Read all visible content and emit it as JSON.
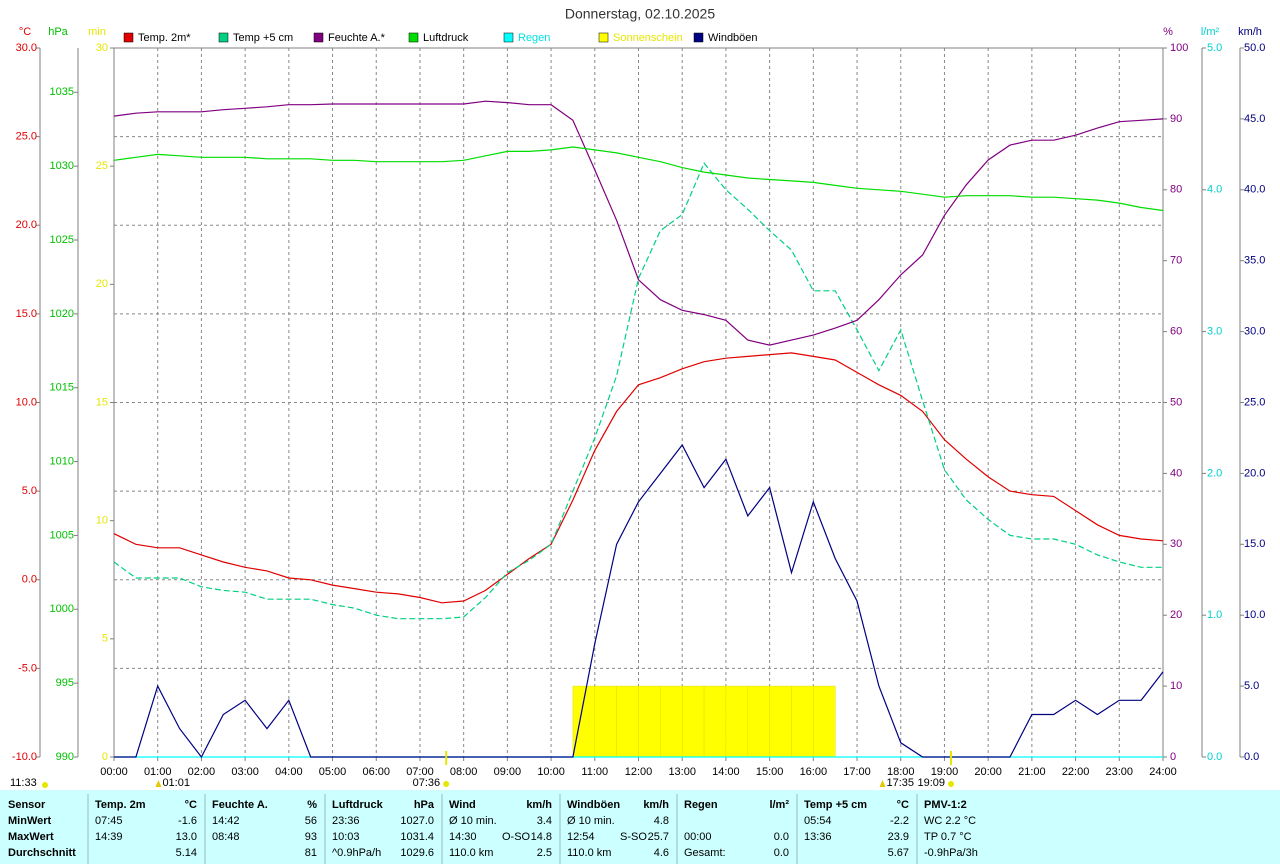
{
  "chart_data": {
    "type": "line",
    "title": "Donnerstag, 02.10.2025",
    "legend": "top",
    "grid": true,
    "grid_axis": 0,
    "xlim": [
      0,
      24
    ],
    "xticks": [
      {
        "value": 0,
        "label": "00:00"
      },
      {
        "value": 1,
        "label": "01:00"
      },
      {
        "value": 2,
        "label": "02:00"
      },
      {
        "value": 3,
        "label": "03:00"
      },
      {
        "value": 4,
        "label": "04:00"
      },
      {
        "value": 5,
        "label": "05:00"
      },
      {
        "value": 6,
        "label": "06:00"
      },
      {
        "value": 7,
        "label": "07:00"
      },
      {
        "value": 8,
        "label": "08:00"
      },
      {
        "value": 9,
        "label": "09:00"
      },
      {
        "value": 10,
        "label": "10:00"
      },
      {
        "value": 11,
        "label": "11:00"
      },
      {
        "value": 12,
        "label": "12:00"
      },
      {
        "value": 13,
        "label": "13:00"
      },
      {
        "value": 14,
        "label": "14:00"
      },
      {
        "value": 15,
        "label": "15:00"
      },
      {
        "value": 16,
        "label": "16:00"
      },
      {
        "value": 17,
        "label": "17:00"
      },
      {
        "value": 18,
        "label": "18:00"
      },
      {
        "value": 19,
        "label": "19:00"
      },
      {
        "value": 20,
        "label": "20:00"
      },
      {
        "value": 21,
        "label": "21:00"
      },
      {
        "value": 22,
        "label": "22:00"
      },
      {
        "value": 23,
        "label": "23:00"
      },
      {
        "value": 24,
        "label": "24:00"
      }
    ],
    "axes": [
      {
        "label": "°C",
        "color": "#e00000",
        "lim": [
          -10,
          30
        ],
        "ticks": [
          {
            "value": -10,
            "label": "-10.0"
          },
          {
            "value": -5,
            "label": "-5.0"
          },
          {
            "value": 0,
            "label": "0.0"
          },
          {
            "value": 5,
            "label": "5.0"
          },
          {
            "value": 10,
            "label": "10.0"
          },
          {
            "value": 15,
            "label": "15.0"
          },
          {
            "value": 20,
            "label": "20.0"
          },
          {
            "value": 25,
            "label": "25.0"
          },
          {
            "value": 30,
            "label": "30.0"
          }
        ]
      },
      {
        "label": "hPa",
        "color": "#00c000",
        "lim": [
          990,
          1038
        ],
        "ticks": [
          990,
          995,
          1000,
          1005,
          1010,
          1015,
          1020,
          1025,
          1030,
          1035
        ]
      },
      {
        "label": "min",
        "color": "#e6e600",
        "lim": [
          0,
          30
        ],
        "ticks": [
          0,
          5,
          10,
          15,
          20,
          25,
          30
        ]
      },
      {
        "label": "%",
        "color": "#800080",
        "lim": [
          0,
          100
        ],
        "ticks": [
          0,
          10,
          20,
          30,
          40,
          50,
          60,
          70,
          80,
          90,
          100
        ]
      },
      {
        "label": "l/m²",
        "color": "#00d0d0",
        "lim": [
          0,
          5
        ],
        "ticks": [
          {
            "value": 0,
            "label": "0.0"
          },
          {
            "value": 1,
            "label": "1.0"
          },
          {
            "value": 2,
            "label": "2.0"
          },
          {
            "value": 3,
            "label": "3.0"
          },
          {
            "value": 4,
            "label": "4.0"
          },
          {
            "value": 5,
            "label": "5.0"
          }
        ]
      },
      {
        "label": "km/h",
        "color": "#000080",
        "lim": [
          0,
          50
        ],
        "ticks": [
          {
            "value": 0,
            "label": "0.0"
          },
          {
            "value": 5,
            "label": "5.0"
          },
          {
            "value": 10,
            "label": "10.0"
          },
          {
            "value": 15,
            "label": "15.0"
          },
          {
            "value": 20,
            "label": "20.0"
          },
          {
            "value": 25,
            "label": "25.0"
          },
          {
            "value": 30,
            "label": "30.0"
          },
          {
            "value": 35,
            "label": "35.0"
          },
          {
            "value": 40,
            "label": "40.0"
          },
          {
            "value": 45,
            "label": "45.0"
          },
          {
            "value": 50,
            "label": "50.0"
          }
        ]
      }
    ],
    "x": [
      0,
      0.5,
      1,
      1.5,
      2,
      2.5,
      3,
      3.5,
      4,
      4.5,
      5,
      5.5,
      6,
      6.5,
      7,
      7.5,
      8,
      8.5,
      9,
      9.5,
      10,
      10.5,
      11,
      11.5,
      12,
      12.5,
      13,
      13.5,
      14,
      14.5,
      15,
      15.5,
      16,
      16.5,
      17,
      17.5,
      18,
      18.5,
      19,
      19.5,
      20,
      20.5,
      21,
      21.5,
      22,
      22.5,
      23,
      23.5,
      24
    ],
    "series": [
      {
        "name": "Temp. 2m*",
        "color": "#e00000",
        "axis": 0,
        "style": "solid",
        "values": [
          2.6,
          2.0,
          1.8,
          1.8,
          1.4,
          1.0,
          0.7,
          0.5,
          0.1,
          0.0,
          -0.3,
          -0.5,
          -0.7,
          -0.8,
          -1.0,
          -1.3,
          -1.2,
          -0.6,
          0.3,
          1.2,
          2.0,
          4.5,
          7.3,
          9.5,
          11.0,
          11.4,
          11.9,
          12.3,
          12.5,
          12.6,
          12.7,
          12.8,
          12.6,
          12.4,
          11.7,
          11.0,
          10.4,
          9.5,
          7.9,
          6.8,
          5.8,
          5.0,
          4.8,
          4.7,
          3.9,
          3.1,
          2.5,
          2.3,
          2.2
        ]
      },
      {
        "name": "Temp +5 cm",
        "color": "#00d080",
        "axis": 0,
        "style": "dashed",
        "values": [
          1.0,
          0.1,
          0.1,
          0.1,
          -0.4,
          -0.6,
          -0.7,
          -1.1,
          -1.1,
          -1.1,
          -1.4,
          -1.6,
          -2.0,
          -2.2,
          -2.2,
          -2.2,
          -2.1,
          -1.0,
          0.4,
          1.1,
          2.0,
          5.0,
          8.0,
          11.5,
          17.0,
          19.7,
          20.6,
          23.5,
          22.0,
          20.9,
          19.7,
          18.6,
          16.3,
          16.3,
          14.1,
          11.8,
          14.1,
          10.1,
          6.2,
          4.5,
          3.4,
          2.5,
          2.3,
          2.3,
          2.0,
          1.4,
          1.0,
          0.7,
          0.7
        ]
      },
      {
        "name": "Feuchte A.*",
        "color": "#800080",
        "axis": 3,
        "style": "solid",
        "values": [
          90.4,
          90.8,
          91.0,
          91.0,
          91.0,
          91.3,
          91.5,
          91.7,
          92.0,
          92.0,
          92.1,
          92.1,
          92.1,
          92.1,
          92.1,
          92.1,
          92.1,
          92.5,
          92.3,
          92.0,
          92.0,
          89.8,
          82.8,
          75.7,
          67.3,
          64.5,
          63.0,
          62.4,
          61.6,
          58.8,
          58.1,
          58.8,
          59.5,
          60.5,
          61.6,
          64.5,
          68.0,
          70.8,
          76.4,
          80.7,
          84.2,
          86.3,
          87.0,
          87.0,
          87.7,
          88.7,
          89.6,
          89.8,
          90.0
        ]
      },
      {
        "name": "Luftdruck",
        "color": "#00dd00",
        "axis": 1,
        "style": "solid",
        "values": [
          1030.4,
          1030.6,
          1030.8,
          1030.7,
          1030.6,
          1030.6,
          1030.6,
          1030.5,
          1030.5,
          1030.5,
          1030.4,
          1030.4,
          1030.3,
          1030.3,
          1030.3,
          1030.3,
          1030.4,
          1030.7,
          1031.0,
          1031.0,
          1031.1,
          1031.3,
          1031.1,
          1030.9,
          1030.6,
          1030.3,
          1029.9,
          1029.6,
          1029.4,
          1029.2,
          1029.1,
          1029.0,
          1028.9,
          1028.7,
          1028.5,
          1028.4,
          1028.3,
          1028.1,
          1027.9,
          1028.0,
          1028.0,
          1028.0,
          1027.9,
          1027.9,
          1027.8,
          1027.7,
          1027.5,
          1027.2,
          1027.0
        ]
      },
      {
        "name": "Regen",
        "color": "#00ffff",
        "legend_text_color": "#00e0e0",
        "axis": 4,
        "style": "solid",
        "values": [
          0,
          0,
          0,
          0,
          0,
          0,
          0,
          0,
          0,
          0,
          0,
          0,
          0,
          0,
          0,
          0,
          0,
          0,
          0,
          0,
          0,
          0,
          0,
          0,
          0,
          0,
          0,
          0,
          0,
          0,
          0,
          0,
          0,
          0,
          0,
          0,
          0,
          0,
          0,
          0,
          0,
          0,
          0,
          0,
          0,
          0,
          0,
          0,
          0
        ]
      },
      {
        "name": "Sonnenschein",
        "color": "#ffff00",
        "legend_text_color": "#e6e600",
        "axis": 2,
        "style": "bars",
        "values": [
          0,
          0,
          0,
          0,
          0,
          0,
          0,
          0,
          0,
          0,
          0,
          0,
          0,
          0,
          0,
          0,
          0,
          0,
          0,
          0,
          0,
          0,
          3,
          3,
          3,
          3,
          3,
          3,
          3,
          3,
          3,
          3,
          3,
          3,
          0,
          0,
          0,
          0,
          0,
          0,
          0,
          0,
          0,
          0,
          0,
          0,
          0,
          0,
          0
        ]
      },
      {
        "name": "Windböen",
        "color": "#000080",
        "axis": 5,
        "style": "solid",
        "values": [
          0,
          0,
          5,
          2,
          0,
          3,
          4,
          2,
          4,
          0,
          0,
          0,
          0,
          0,
          0,
          0,
          0,
          0,
          0,
          0,
          0,
          0,
          8,
          15,
          18,
          20,
          22,
          19,
          21,
          17,
          19,
          13,
          18,
          14,
          11,
          5,
          1,
          0,
          0,
          0,
          0,
          0,
          3,
          3,
          4,
          3,
          4,
          4,
          6
        ]
      }
    ],
    "markers": [
      {
        "x": 1.017,
        "label": "01:01",
        "symbol": "triangle"
      },
      {
        "x": 7.6,
        "label": "07:36",
        "symbol": "sun"
      },
      {
        "x": 17.583,
        "label": "17:35",
        "symbol": "triangle"
      },
      {
        "x": 19.15,
        "label": "19:09",
        "symbol": "sun"
      }
    ],
    "corner_marker": {
      "label": "11:33"
    }
  },
  "summary": {
    "row_label_header": "Sensor",
    "groups": [
      {
        "name": "Temp. 2m",
        "unit": "°C"
      },
      {
        "name": "Feuchte A.",
        "unit": "%"
      },
      {
        "name": "Luftdruck",
        "unit": "hPa"
      },
      {
        "name": "Wind",
        "unit": "km/h"
      },
      {
        "name": "Windböen",
        "unit": "km/h"
      },
      {
        "name": "Regen",
        "unit": "l/m²"
      },
      {
        "name": "Temp +5 cm",
        "unit": "°C"
      },
      {
        "name": "PMV-1:2"
      }
    ],
    "rows": [
      {
        "label": "MinWert",
        "cells": [
          [
            "07:45",
            null,
            "-1.6"
          ],
          [
            "14:42",
            null,
            "56"
          ],
          [
            "23:36",
            null,
            "1027.0"
          ],
          [
            "Ø 10 min.",
            null,
            "3.4"
          ],
          [
            "Ø 10 min.",
            null,
            "4.8"
          ],
          [
            null,
            null,
            null
          ],
          [
            "05:54",
            null,
            "-2.2"
          ],
          [
            "WC 2.2 °C",
            null,
            null
          ]
        ]
      },
      {
        "label": "MaxWert",
        "cells": [
          [
            "14:39",
            null,
            "13.0"
          ],
          [
            "08:48",
            null,
            "93"
          ],
          [
            "10:03",
            null,
            "1031.4"
          ],
          [
            "14:30",
            "O-SO",
            "14.8"
          ],
          [
            "12:54",
            "S-SO",
            "25.7"
          ],
          [
            "00:00",
            null,
            "0.0"
          ],
          [
            "13:36",
            null,
            "23.9"
          ],
          [
            "TP 0.7 °C",
            null,
            null
          ]
        ]
      },
      {
        "label": "Durchschnitt",
        "cells": [
          [
            null,
            null,
            "5.14"
          ],
          [
            null,
            null,
            "81"
          ],
          [
            "^0.9hPa/h",
            null,
            "1029.6"
          ],
          [
            "110.0 km",
            null,
            "2.5"
          ],
          [
            "110.0 km",
            null,
            "4.6"
          ],
          [
            "Gesamt:",
            null,
            "0.0"
          ],
          [
            null,
            null,
            "5.67"
          ],
          [
            "-0.9hPa/3h",
            null,
            null
          ]
        ]
      }
    ]
  }
}
